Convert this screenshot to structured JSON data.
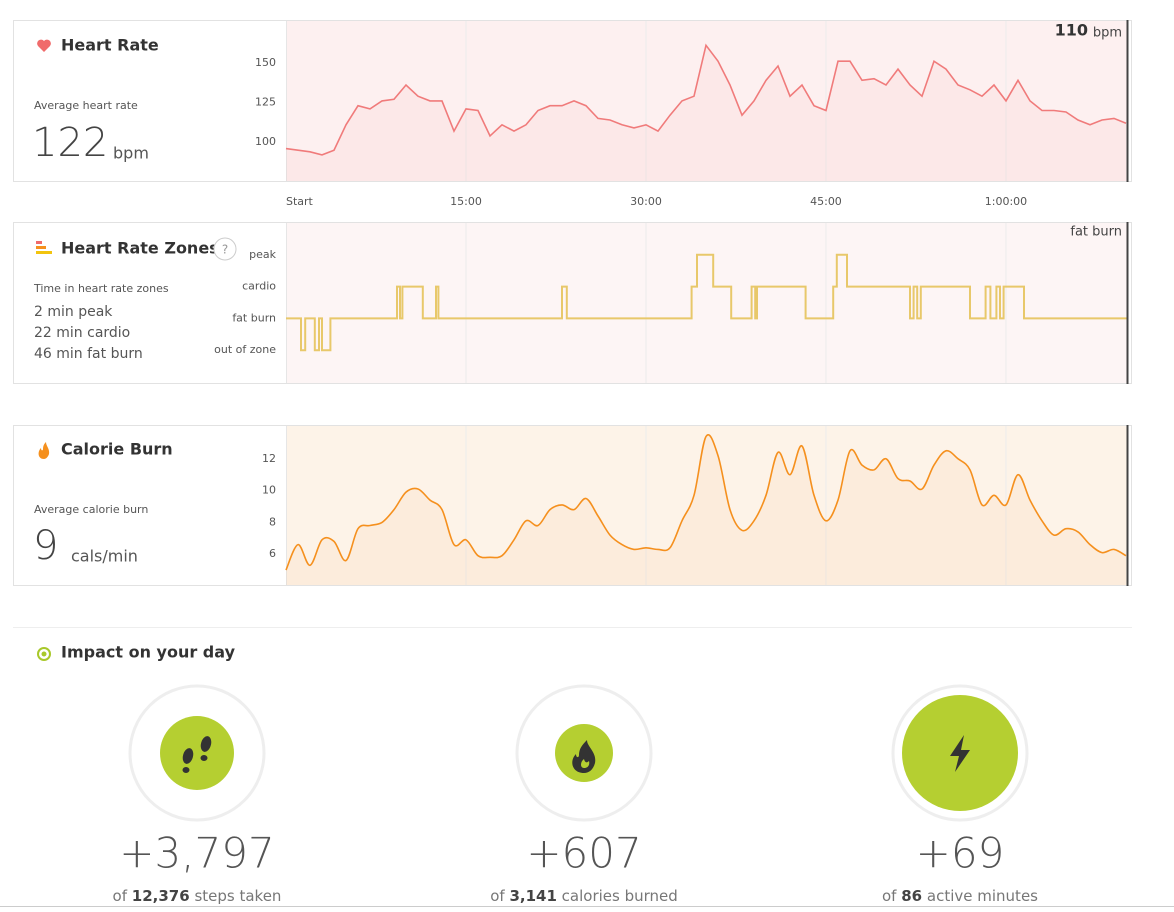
{
  "heart_rate": {
    "title": "Heart Rate",
    "current_value": "110",
    "current_unit": "bpm",
    "summary_label": "Average heart rate",
    "summary_value": "122",
    "summary_unit": "bpm",
    "chart_data": {
      "type": "line",
      "color": "#f07b7b",
      "fill": "#fdf0f0",
      "x": [
        0,
        1,
        2,
        3,
        4,
        5,
        6,
        7,
        8,
        9,
        10,
        11,
        12,
        13,
        14,
        15,
        16,
        17,
        18,
        19,
        20,
        21,
        22,
        23,
        24,
        25,
        26,
        27,
        28,
        29,
        30,
        31,
        32,
        33,
        34,
        35,
        36,
        37,
        38,
        39,
        40,
        41,
        42,
        43,
        44,
        45,
        46,
        47,
        48,
        49,
        50,
        51,
        52,
        53,
        54,
        55,
        56,
        57,
        58,
        59,
        60,
        61,
        62,
        63,
        64,
        65,
        66,
        67,
        68,
        69,
        70
      ],
      "values": [
        96,
        95,
        94,
        92,
        95,
        111,
        123,
        121,
        126,
        127,
        136,
        129,
        126,
        126,
        107,
        121,
        120,
        104,
        111,
        107,
        111,
        120,
        123,
        123,
        126,
        123,
        115,
        114,
        111,
        109,
        111,
        107,
        117,
        126,
        129,
        161,
        151,
        136,
        117,
        126,
        139,
        148,
        129,
        136,
        123,
        120,
        151,
        151,
        139,
        140,
        136,
        146,
        136,
        129,
        151,
        146,
        136,
        133,
        129,
        136,
        126,
        139,
        126,
        120,
        120,
        119,
        114,
        111,
        114,
        115,
        112
      ],
      "xlim": [
        0,
        70.17
      ],
      "ylim": [
        75.6,
        176.3
      ],
      "yticks": [
        100,
        125,
        150
      ],
      "xticks": [
        {
          "value": 0,
          "label": "Start"
        },
        {
          "value": 15,
          "label": "15:00"
        },
        {
          "value": 30,
          "label": "30:00"
        },
        {
          "value": 45,
          "label": "45:00"
        },
        {
          "value": 60,
          "label": "1:00:00"
        }
      ]
    }
  },
  "heart_rate_zones": {
    "title": "Heart Rate Zones",
    "help": "?",
    "current_zone": "fat burn",
    "summary_label": "Time in heart rate zones",
    "summary_lines": [
      "2 min peak",
      "22 min cardio",
      "46 min fat burn"
    ],
    "chart_data": {
      "type": "step",
      "color": "#e8c86a",
      "fill": "#fdf5f5",
      "x": [
        0,
        1.25,
        1.6,
        2.4,
        2.75,
        3,
        3.7,
        9.25,
        9.5,
        9.7,
        11.4,
        12.5,
        12.7,
        23,
        23.4,
        33.8,
        34.25,
        35.6,
        37.1,
        38.8,
        39.1,
        39.25,
        43.3,
        45.6,
        45.9,
        46.75,
        52,
        52.3,
        52.6,
        52.9,
        57,
        58.3,
        58.7,
        59.2,
        59.5,
        59.8,
        61.5,
        70.17
      ],
      "values": [
        1,
        0,
        1,
        0,
        1,
        0,
        1,
        2,
        1,
        2,
        1,
        2,
        1,
        2,
        1,
        2,
        3,
        2,
        1,
        2,
        1,
        2,
        1,
        2,
        3,
        2,
        1,
        2,
        1,
        2,
        1,
        2,
        1,
        2,
        1,
        2,
        1,
        1
      ],
      "xlim": [
        0,
        70.17
      ],
      "ylim": [
        -1.03,
        4.0
      ],
      "yticks": [
        {
          "value": 0,
          "label": "out of zone"
        },
        {
          "value": 1,
          "label": "fat burn"
        },
        {
          "value": 2,
          "label": "cardio"
        },
        {
          "value": 3,
          "label": "peak"
        }
      ]
    }
  },
  "calorie_burn": {
    "title": "Calorie Burn",
    "summary_label": "Average calorie burn",
    "summary_value": "9",
    "summary_unit": "cals/min",
    "chart_data": {
      "type": "smooth",
      "color": "#f5901e",
      "fill": "#fdf3e8",
      "x": [
        0,
        1,
        2,
        3,
        4,
        5,
        6,
        7,
        8,
        9,
        10,
        11,
        12,
        13,
        14,
        15,
        16,
        17,
        18,
        19,
        20,
        21,
        22,
        23,
        24,
        25,
        26,
        27,
        28,
        29,
        30,
        31,
        32,
        33,
        34,
        35,
        36,
        37,
        38,
        39,
        40,
        41,
        42,
        43,
        44,
        45,
        46,
        47,
        48,
        49,
        50,
        51,
        52,
        53,
        54,
        55,
        56,
        57,
        58,
        59,
        60,
        61,
        62,
        63,
        64,
        65,
        66,
        67,
        68,
        69,
        70
      ],
      "values": [
        5.0,
        6.6,
        5.3,
        6.9,
        6.8,
        5.6,
        7.6,
        7.8,
        8.0,
        8.8,
        9.9,
        10.1,
        9.4,
        8.8,
        6.6,
        6.9,
        5.9,
        5.8,
        5.9,
        6.9,
        8.1,
        7.8,
        8.8,
        9.1,
        8.8,
        9.5,
        8.4,
        7.2,
        6.6,
        6.3,
        6.4,
        6.3,
        6.4,
        8.1,
        9.7,
        13.4,
        12.2,
        8.8,
        7.5,
        8.1,
        9.7,
        12.4,
        11.0,
        12.8,
        9.7,
        8.1,
        9.4,
        12.5,
        11.6,
        11.3,
        12.0,
        10.75,
        10.6,
        10.1,
        11.6,
        12.5,
        12.0,
        11.3,
        9.1,
        9.7,
        9.1,
        11.0,
        9.4,
        8.1,
        7.2,
        7.6,
        7.4,
        6.6,
        6.1,
        6.3,
        5.9
      ],
      "xlim": [
        0,
        70.17
      ],
      "ylim": [
        4.06,
        14.06
      ],
      "yticks": [
        6,
        8,
        10,
        12
      ]
    }
  },
  "impact": {
    "title": "Impact on your day",
    "items": [
      {
        "value": "+3,797",
        "prefix": "of",
        "total": "12,376",
        "suffix": "steps taken"
      },
      {
        "value": "+607",
        "prefix": "of",
        "total": "3,141",
        "suffix": "calories burned"
      },
      {
        "value": "+69",
        "prefix": "of",
        "total": "86",
        "suffix": "active minutes"
      }
    ]
  }
}
